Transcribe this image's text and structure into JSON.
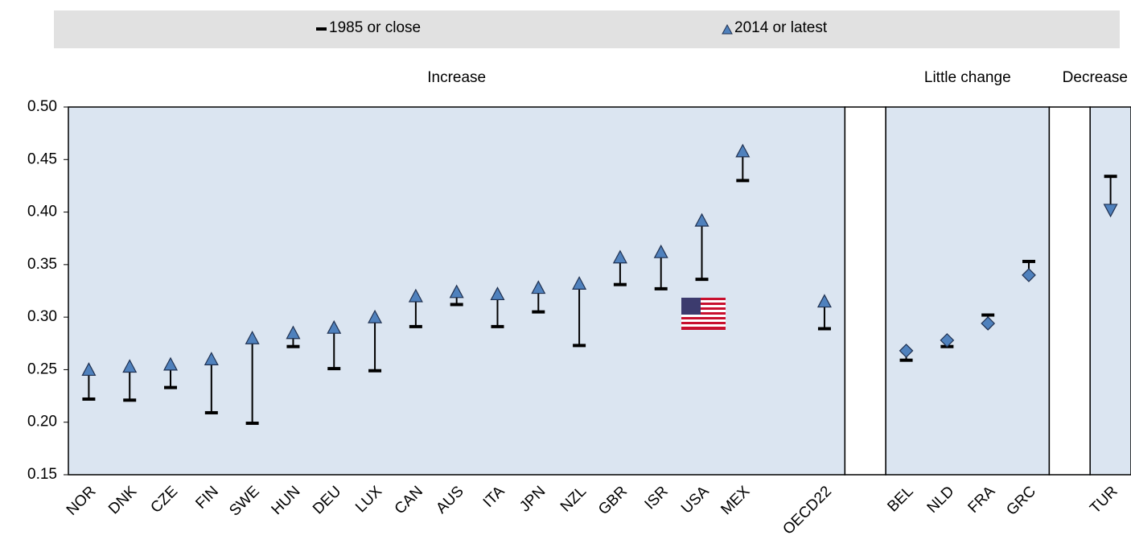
{
  "chart_data": {
    "type": "dot-range",
    "series": [
      {
        "name": "1985 or close",
        "color": "#000000"
      },
      {
        "name": "2014 or latest",
        "color": "#4f81bd"
      }
    ],
    "ylim": [
      0.15,
      0.5
    ],
    "yticks": [
      {
        "value": 0.15,
        "label": "0.15"
      },
      {
        "value": 0.2,
        "label": "0.20"
      },
      {
        "value": 0.25,
        "label": "0.25"
      },
      {
        "value": 0.3,
        "label": "0.30"
      },
      {
        "value": 0.35,
        "label": "0.35"
      },
      {
        "value": 0.4,
        "label": "0.40"
      },
      {
        "value": 0.45,
        "label": "0.45"
      },
      {
        "value": 0.5,
        "label": "0.50"
      }
    ],
    "panels": [
      {
        "label": "Increase",
        "marker": "triangle-up",
        "categories": [
          "NOR",
          "DNK",
          "CZE",
          "FIN",
          "SWE",
          "HUN",
          "DEU",
          "LUX",
          "CAN",
          "AUS",
          "ITA",
          "JPN",
          "NZL",
          "GBR",
          "ISR",
          "USA",
          "MEX",
          null,
          "OECD22"
        ],
        "values_1985": [
          0.222,
          0.221,
          0.233,
          0.209,
          0.199,
          0.272,
          0.251,
          0.249,
          0.291,
          0.312,
          0.291,
          0.305,
          0.273,
          0.331,
          0.327,
          0.336,
          0.43,
          null,
          0.289
        ],
        "values_2014": [
          0.25,
          0.253,
          0.255,
          0.26,
          0.28,
          0.285,
          0.29,
          0.3,
          0.32,
          0.324,
          0.322,
          0.328,
          0.332,
          0.357,
          0.362,
          0.392,
          0.458,
          null,
          0.315
        ]
      },
      {
        "label": "Little  change",
        "marker": "diamond",
        "categories": [
          "BEL",
          "NLD",
          "FRA",
          "GRC"
        ],
        "values_1985": [
          0.259,
          0.272,
          0.302,
          0.353
        ],
        "values_2014": [
          0.268,
          0.278,
          0.294,
          0.34
        ]
      },
      {
        "label": "Decrease",
        "marker": "triangle-down",
        "categories": [
          "TUR"
        ],
        "values_1985": [
          0.434
        ],
        "values_2014": [
          0.402
        ]
      }
    ]
  }
}
